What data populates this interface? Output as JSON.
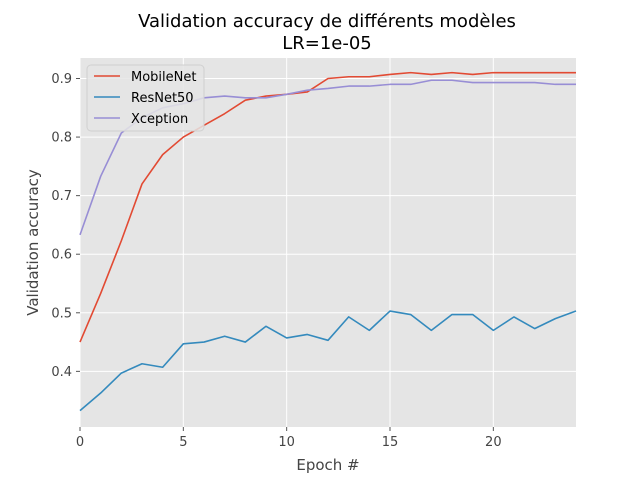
{
  "chart_data": {
    "type": "line",
    "title": "Validation accuracy de différents modèles",
    "subtitle": "LR=1e-05",
    "xlabel": "Epoch #",
    "ylabel": "Validation accuracy",
    "xlim": [
      0,
      24
    ],
    "ylim": [
      0.305,
      0.935
    ],
    "xticks": [
      0,
      5,
      10,
      15,
      20
    ],
    "yticks": [
      0.4,
      0.5,
      0.6,
      0.7,
      0.8,
      0.9
    ],
    "grid": true,
    "legend_position": "top-left",
    "x": [
      0,
      1,
      2,
      3,
      4,
      5,
      6,
      7,
      8,
      9,
      10,
      11,
      12,
      13,
      14,
      15,
      16,
      17,
      18,
      19,
      20,
      21,
      22,
      23,
      24
    ],
    "series": [
      {
        "name": "MobileNet",
        "color": "#E24A33",
        "values": [
          0.45,
          0.533,
          0.623,
          0.72,
          0.77,
          0.8,
          0.82,
          0.84,
          0.863,
          0.87,
          0.873,
          0.877,
          0.9,
          0.903,
          0.903,
          0.907,
          0.91,
          0.907,
          0.91,
          0.907,
          0.91,
          0.91,
          0.91,
          0.91,
          0.91
        ]
      },
      {
        "name": "ResNet50",
        "color": "#348ABD",
        "values": [
          0.333,
          0.363,
          0.397,
          0.413,
          0.407,
          0.447,
          0.45,
          0.46,
          0.45,
          0.477,
          0.457,
          0.463,
          0.453,
          0.493,
          0.47,
          0.503,
          0.497,
          0.47,
          0.497,
          0.497,
          0.47,
          0.493,
          0.473,
          0.49,
          0.503
        ]
      },
      {
        "name": "Xception",
        "color": "#988ED5",
        "values": [
          0.633,
          0.733,
          0.807,
          0.833,
          0.85,
          0.857,
          0.867,
          0.87,
          0.867,
          0.867,
          0.873,
          0.88,
          0.883,
          0.887,
          0.887,
          0.89,
          0.89,
          0.897,
          0.897,
          0.893,
          0.893,
          0.893,
          0.893,
          0.89,
          0.89
        ]
      }
    ]
  }
}
